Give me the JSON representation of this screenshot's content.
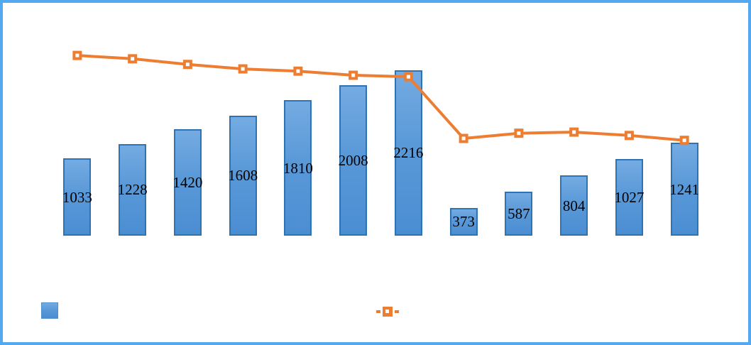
{
  "frame": {
    "background_color": "#FFFFFF",
    "border_color": "#54A8F0"
  },
  "chart_data": {
    "type": "combo-bar-line",
    "num_categories": 12,
    "category_axis_labels_visible": false,
    "axes_visible": false,
    "grid": false,
    "ylim": [
      0,
      2800
    ],
    "bar_series": {
      "name": "bar-series",
      "values": [
        1033,
        1228,
        1420,
        1608,
        1810,
        2008,
        2216,
        373,
        587,
        804,
        1027,
        1241
      ],
      "data_labels": [
        "1033",
        "1228",
        "1420",
        "1608",
        "1810",
        "2008",
        "2216",
        "373",
        "587",
        "804",
        "1027",
        "1241"
      ],
      "data_label_position": "inside-center",
      "data_label_color": "#000000",
      "fill_gradient_top": "#74ABE2",
      "fill_gradient_mid": "#5A99D8",
      "fill_gradient_bottom": "#4A8ED2",
      "border_color": "#2E74B5"
    },
    "line_series": {
      "name": "line-series",
      "values_are_estimated": true,
      "values": [
        2410,
        2365,
        2290,
        2230,
        2200,
        2145,
        2125,
        1300,
        1370,
        1385,
        1340,
        1275
      ],
      "color": "#ED7D31",
      "marker_shape": "square",
      "marker_fill": "#ED7D31",
      "marker_center_color": "#FFFFFF"
    },
    "legend": {
      "position": "bottom",
      "entries": [
        {
          "swatch": "blue-square",
          "label": ""
        },
        {
          "swatch": "orange-line-marker",
          "label": ""
        }
      ]
    }
  }
}
